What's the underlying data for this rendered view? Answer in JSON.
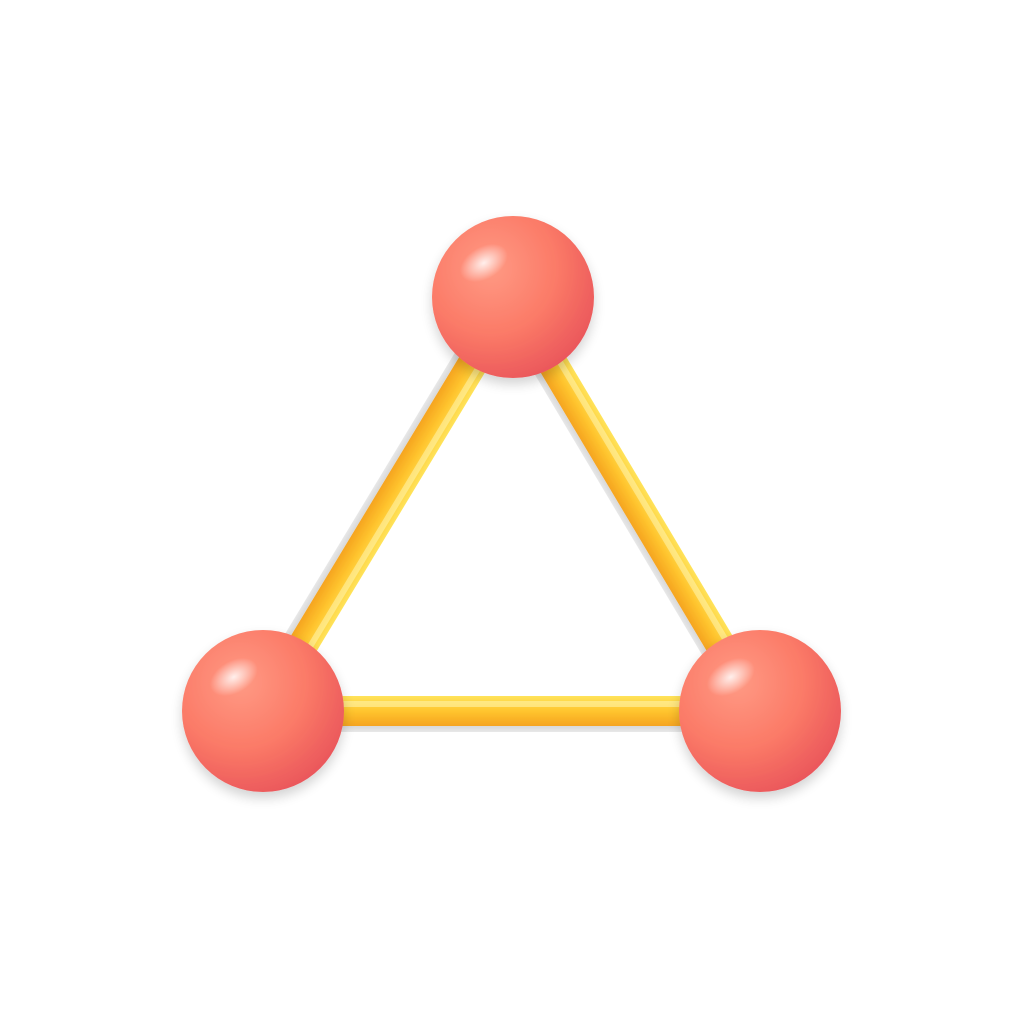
{
  "icon": {
    "name": "triangle-molecule-icon",
    "background_color": "#ffffff",
    "node_colors": {
      "light": "#ff9a84",
      "mid": "#fb7a67",
      "dark": "#e9545a"
    },
    "rod_colors": {
      "light": "#ffe35a",
      "mid": "#ffc52e",
      "dark": "#f5a41f"
    },
    "nodes": [
      {
        "name": "top-node"
      },
      {
        "name": "bottom-left-node"
      },
      {
        "name": "bottom-right-node"
      }
    ],
    "bonds": [
      {
        "name": "left-bond",
        "from": 0,
        "to": 1
      },
      {
        "name": "right-bond",
        "from": 0,
        "to": 2
      },
      {
        "name": "bottom-bond",
        "from": 1,
        "to": 2
      }
    ]
  }
}
